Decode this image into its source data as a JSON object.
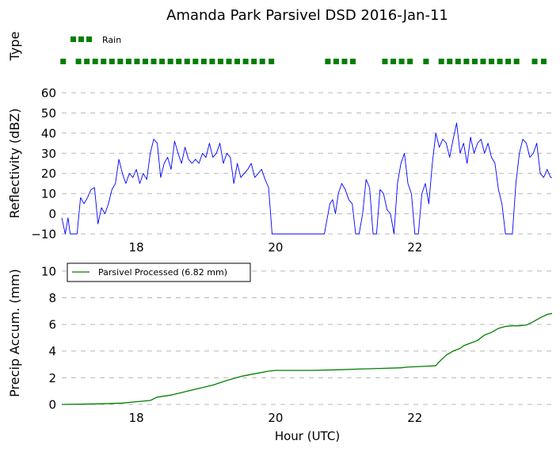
{
  "figure": {
    "title": "Amanda Park Parsivel DSD 2016-Jan-11",
    "xlabel": "Hour (UTC)"
  },
  "colors": {
    "rain_marker": "#007f00",
    "reflectivity": "#0000ff",
    "accumulation": "#007f00",
    "gridlines": "#b8b8b8"
  },
  "chart_data": [
    {
      "type": "scatter",
      "panel": "precipitation type",
      "ylabel": "Type",
      "legend": [
        {
          "label": "Rain",
          "color": "#007f00",
          "marker": "square"
        }
      ],
      "legend_position": "top-left",
      "xlim": [
        16.93,
        23.97
      ],
      "series": [
        {
          "name": "Rain",
          "marker": "square",
          "x": [
            16.95,
            17.17,
            17.29,
            17.41,
            17.53,
            17.65,
            17.77,
            17.89,
            18.01,
            18.13,
            18.25,
            18.37,
            18.49,
            18.61,
            18.73,
            18.85,
            18.97,
            19.09,
            19.21,
            19.33,
            19.45,
            19.57,
            19.69,
            19.81,
            19.94,
            20.75,
            20.87,
            20.99,
            21.11,
            21.57,
            21.69,
            21.81,
            21.93,
            22.16,
            22.38,
            22.5,
            22.62,
            22.74,
            22.86,
            22.98,
            23.1,
            23.22,
            23.34,
            23.46,
            23.72,
            23.85
          ]
        }
      ]
    },
    {
      "type": "line",
      "panel": "reflectivity",
      "ylabel": "Reflectivity (dBZ)",
      "ylim": [
        -10,
        60
      ],
      "yticks": [
        "−10",
        "0",
        "10",
        "20",
        "30",
        "40",
        "50",
        "60"
      ],
      "xlim": [
        16.93,
        23.97
      ],
      "xticks": [
        "18",
        "20",
        "22"
      ],
      "grid": true,
      "series": [
        {
          "name": "Reflectivity",
          "x": [
            16.93,
            16.98,
            17.02,
            17.05,
            17.1,
            17.15,
            17.2,
            17.25,
            17.3,
            17.35,
            17.4,
            17.45,
            17.5,
            17.55,
            17.6,
            17.65,
            17.7,
            17.75,
            17.8,
            17.85,
            17.9,
            17.95,
            18.0,
            18.05,
            18.1,
            18.15,
            18.2,
            18.25,
            18.3,
            18.35,
            18.4,
            18.45,
            18.5,
            18.55,
            18.6,
            18.65,
            18.7,
            18.75,
            18.8,
            18.85,
            18.9,
            18.95,
            19.0,
            19.05,
            19.1,
            19.15,
            19.2,
            19.25,
            19.3,
            19.35,
            19.4,
            19.45,
            19.5,
            19.55,
            19.6,
            19.65,
            19.7,
            19.75,
            19.8,
            19.85,
            19.9,
            19.95,
            20.0,
            20.05,
            20.1,
            20.2,
            20.3,
            20.4,
            20.5,
            20.6,
            20.7,
            20.78,
            20.82,
            20.86,
            20.9,
            20.95,
            21.0,
            21.05,
            21.1,
            21.15,
            21.2,
            21.25,
            21.3,
            21.35,
            21.4,
            21.45,
            21.5,
            21.55,
            21.6,
            21.65,
            21.7,
            21.75,
            21.8,
            21.85,
            21.9,
            21.95,
            22.0,
            22.05,
            22.1,
            22.15,
            22.2,
            22.25,
            22.3,
            22.35,
            22.4,
            22.45,
            22.5,
            22.55,
            22.6,
            22.65,
            22.7,
            22.75,
            22.8,
            22.85,
            22.9,
            22.95,
            23.0,
            23.05,
            23.1,
            23.15,
            23.2,
            23.25,
            23.3,
            23.35,
            23.4,
            23.45,
            23.5,
            23.55,
            23.6,
            23.65,
            23.7,
            23.75,
            23.8,
            23.85,
            23.9,
            23.95,
            23.97
          ],
          "values": [
            -2,
            -10,
            -2,
            -10,
            -10,
            -10,
            8,
            5,
            8,
            12,
            13,
            -5,
            3,
            0,
            5,
            12,
            15,
            27,
            20,
            15,
            20,
            18,
            22,
            15,
            20,
            17,
            30,
            37,
            35,
            18,
            25,
            28,
            22,
            36,
            30,
            25,
            33,
            27,
            25,
            27,
            25,
            30,
            28,
            35,
            28,
            30,
            35,
            25,
            30,
            28,
            15,
            25,
            18,
            20,
            22,
            25,
            18,
            20,
            22,
            17,
            13,
            -10,
            -10,
            -10,
            -10,
            -10,
            -10,
            -10,
            -10,
            -10,
            -10,
            5,
            7,
            0,
            10,
            15,
            12,
            7,
            5,
            -10,
            -10,
            0,
            17,
            13,
            -10,
            -10,
            12,
            10,
            2,
            0,
            -10,
            15,
            25,
            30,
            15,
            10,
            -10,
            -10,
            10,
            15,
            5,
            25,
            40,
            33,
            37,
            35,
            28,
            37,
            45,
            30,
            35,
            25,
            38,
            30,
            35,
            37,
            30,
            35,
            28,
            25,
            12,
            5,
            -10,
            -10,
            -10,
            15,
            30,
            37,
            35,
            28,
            30,
            35,
            20,
            18,
            22,
            18,
            18
          ]
        }
      ]
    },
    {
      "type": "line",
      "panel": "precipitation accumulation",
      "ylabel": "Precip Accum. (mm)",
      "ylim": [
        0,
        11
      ],
      "yticks": [
        "0",
        "2",
        "4",
        "6",
        "8",
        "10"
      ],
      "xlim": [
        16.93,
        23.97
      ],
      "xticks": [
        "18",
        "20",
        "22"
      ],
      "grid": true,
      "legend_position": "upper-left",
      "series": [
        {
          "name": "Parsivel Processed (6.82 mm)",
          "x": [
            16.93,
            17.2,
            17.5,
            17.8,
            18.0,
            18.2,
            18.3,
            18.5,
            18.7,
            18.9,
            19.1,
            19.3,
            19.5,
            19.7,
            19.9,
            20.0,
            20.5,
            20.9,
            21.2,
            21.5,
            21.8,
            21.9,
            22.1,
            22.3,
            22.35,
            22.45,
            22.55,
            22.65,
            22.7,
            22.8,
            22.9,
            23.0,
            23.1,
            23.2,
            23.3,
            23.4,
            23.5,
            23.6,
            23.7,
            23.8,
            23.9,
            23.97
          ],
          "values": [
            0.0,
            0.02,
            0.05,
            0.1,
            0.2,
            0.3,
            0.55,
            0.7,
            0.95,
            1.2,
            1.45,
            1.8,
            2.1,
            2.3,
            2.5,
            2.55,
            2.55,
            2.6,
            2.65,
            2.7,
            2.75,
            2.8,
            2.85,
            2.9,
            3.2,
            3.7,
            4.0,
            4.2,
            4.4,
            4.6,
            4.8,
            5.2,
            5.4,
            5.7,
            5.85,
            5.9,
            5.9,
            5.95,
            6.2,
            6.5,
            6.75,
            6.82
          ]
        }
      ]
    }
  ]
}
